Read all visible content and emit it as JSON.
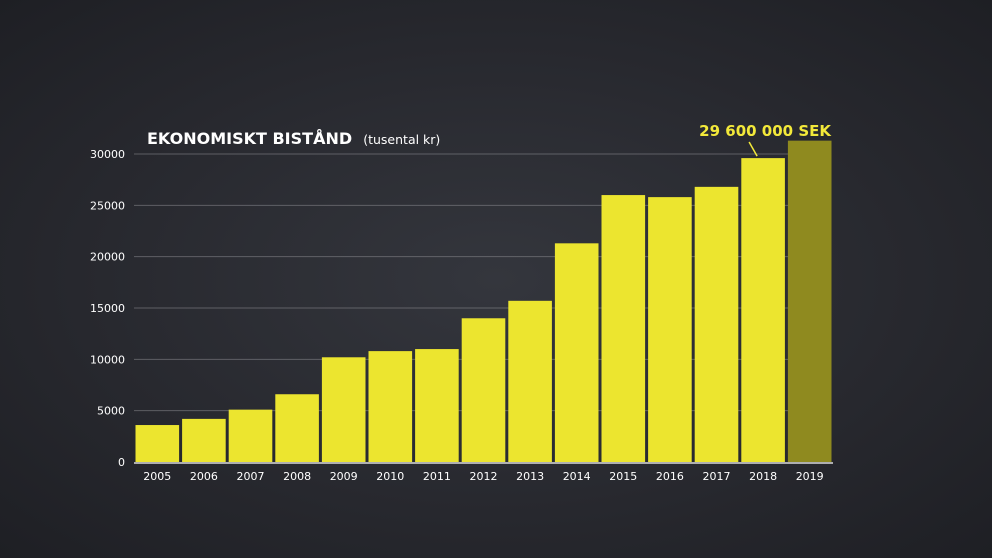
{
  "chart_data": {
    "type": "bar",
    "title": "EKONOMISKT BISTÅND",
    "subtitle": "(tusental kr)",
    "categories": [
      "2005",
      "2006",
      "2007",
      "2008",
      "2009",
      "2010",
      "2011",
      "2012",
      "2013",
      "2014",
      "2015",
      "2016",
      "2017",
      "2018",
      "2019"
    ],
    "values": [
      3600,
      4200,
      5100,
      6600,
      10200,
      10800,
      11000,
      14000,
      15700,
      21300,
      26000,
      25800,
      26800,
      29600,
      31300
    ],
    "ylim": [
      0,
      30000
    ],
    "yticks": [
      0,
      5000,
      10000,
      15000,
      20000,
      25000,
      30000
    ],
    "ytick_labels": [
      "0",
      "5000",
      "10000",
      "15000",
      "20000",
      "25000",
      "30000"
    ],
    "grid": true,
    "xlabel": "",
    "ylabel": "",
    "bar_color": "#ece52f",
    "highlight_bar_color": "#8f8a1f",
    "highlight_category": "2019",
    "annotation": {
      "text": "29 600 000 SEK",
      "category": "2018",
      "color": "#f3e93a"
    }
  }
}
